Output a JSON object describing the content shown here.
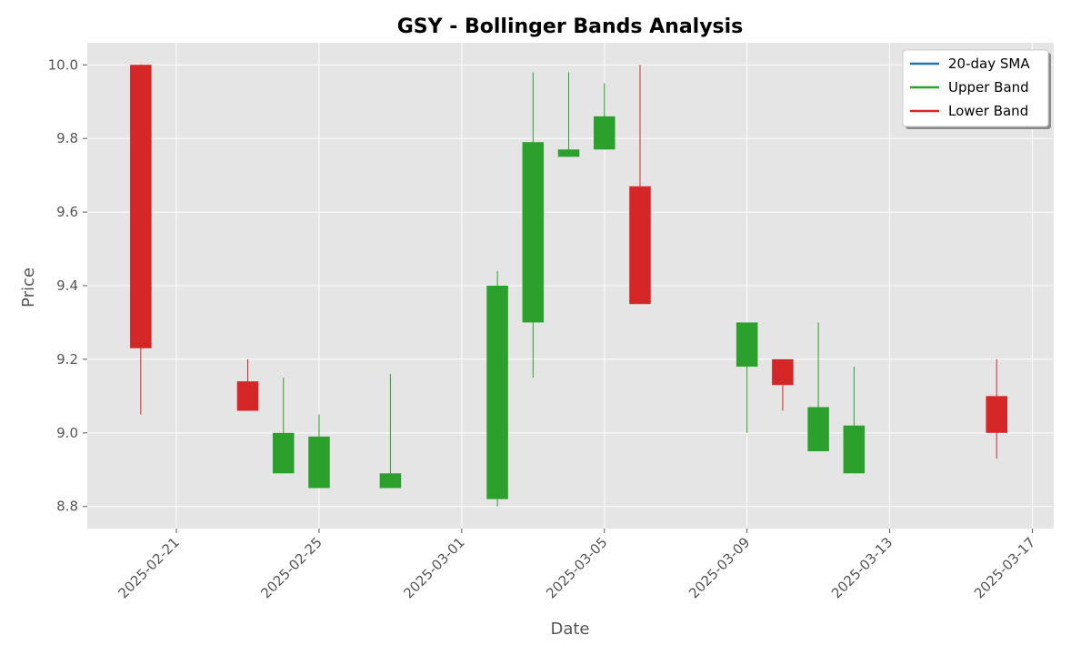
{
  "chart_data": {
    "type": "candlestick",
    "title": "GSY - Bollinger Bands Analysis",
    "xlabel": "Date",
    "ylabel": "Price",
    "grid": true,
    "legend_position": "top-right",
    "xlim": [
      "2025-02-19",
      "2025-03-17"
    ],
    "ylim": [
      8.74,
      10.06
    ],
    "x_ticks": [
      "2025-02-21",
      "2025-02-25",
      "2025-03-01",
      "2025-03-05",
      "2025-03-09",
      "2025-03-13",
      "2025-03-17"
    ],
    "y_ticks": [
      "8.8",
      "9.0",
      "9.2",
      "9.4",
      "9.6",
      "9.8",
      "10.0"
    ],
    "legend": [
      {
        "name": "20-day SMA",
        "color": "#1f77b4"
      },
      {
        "name": "Upper Band",
        "color": "#2ca02c"
      },
      {
        "name": "Lower Band",
        "color": "#d62728"
      }
    ],
    "up_color": "#2ca02c",
    "down_color": "#d62728",
    "candles": [
      {
        "date": "2025-02-20",
        "open": 10.0,
        "high": 10.0,
        "low": 9.05,
        "close": 9.23
      },
      {
        "date": "2025-02-23",
        "open": 9.14,
        "high": 9.2,
        "low": 9.06,
        "close": 9.06
      },
      {
        "date": "2025-02-24",
        "open": 8.89,
        "high": 9.15,
        "low": 8.89,
        "close": 9.0
      },
      {
        "date": "2025-02-25",
        "open": 8.85,
        "high": 9.05,
        "low": 8.85,
        "close": 8.99
      },
      {
        "date": "2025-02-27",
        "open": 8.85,
        "high": 9.16,
        "low": 8.85,
        "close": 8.89
      },
      {
        "date": "2025-03-02",
        "open": 8.82,
        "high": 9.44,
        "low": 8.8,
        "close": 9.4
      },
      {
        "date": "2025-03-03",
        "open": 9.3,
        "high": 9.98,
        "low": 9.15,
        "close": 9.79
      },
      {
        "date": "2025-03-04",
        "open": 9.75,
        "high": 9.98,
        "low": 9.75,
        "close": 9.77
      },
      {
        "date": "2025-03-05",
        "open": 9.77,
        "high": 9.95,
        "low": 9.77,
        "close": 9.86
      },
      {
        "date": "2025-03-06",
        "open": 9.67,
        "high": 10.0,
        "low": 9.35,
        "close": 9.35
      },
      {
        "date": "2025-03-09",
        "open": 9.18,
        "high": 9.3,
        "low": 9.0,
        "close": 9.3
      },
      {
        "date": "2025-03-10",
        "open": 9.2,
        "high": 9.2,
        "low": 9.06,
        "close": 9.13
      },
      {
        "date": "2025-03-11",
        "open": 8.95,
        "high": 9.3,
        "low": 8.95,
        "close": 9.07
      },
      {
        "date": "2025-03-12",
        "open": 8.89,
        "high": 9.18,
        "low": 8.89,
        "close": 9.02
      },
      {
        "date": "2025-03-16",
        "open": 9.1,
        "high": 9.2,
        "low": 8.93,
        "close": 9.0
      }
    ]
  }
}
